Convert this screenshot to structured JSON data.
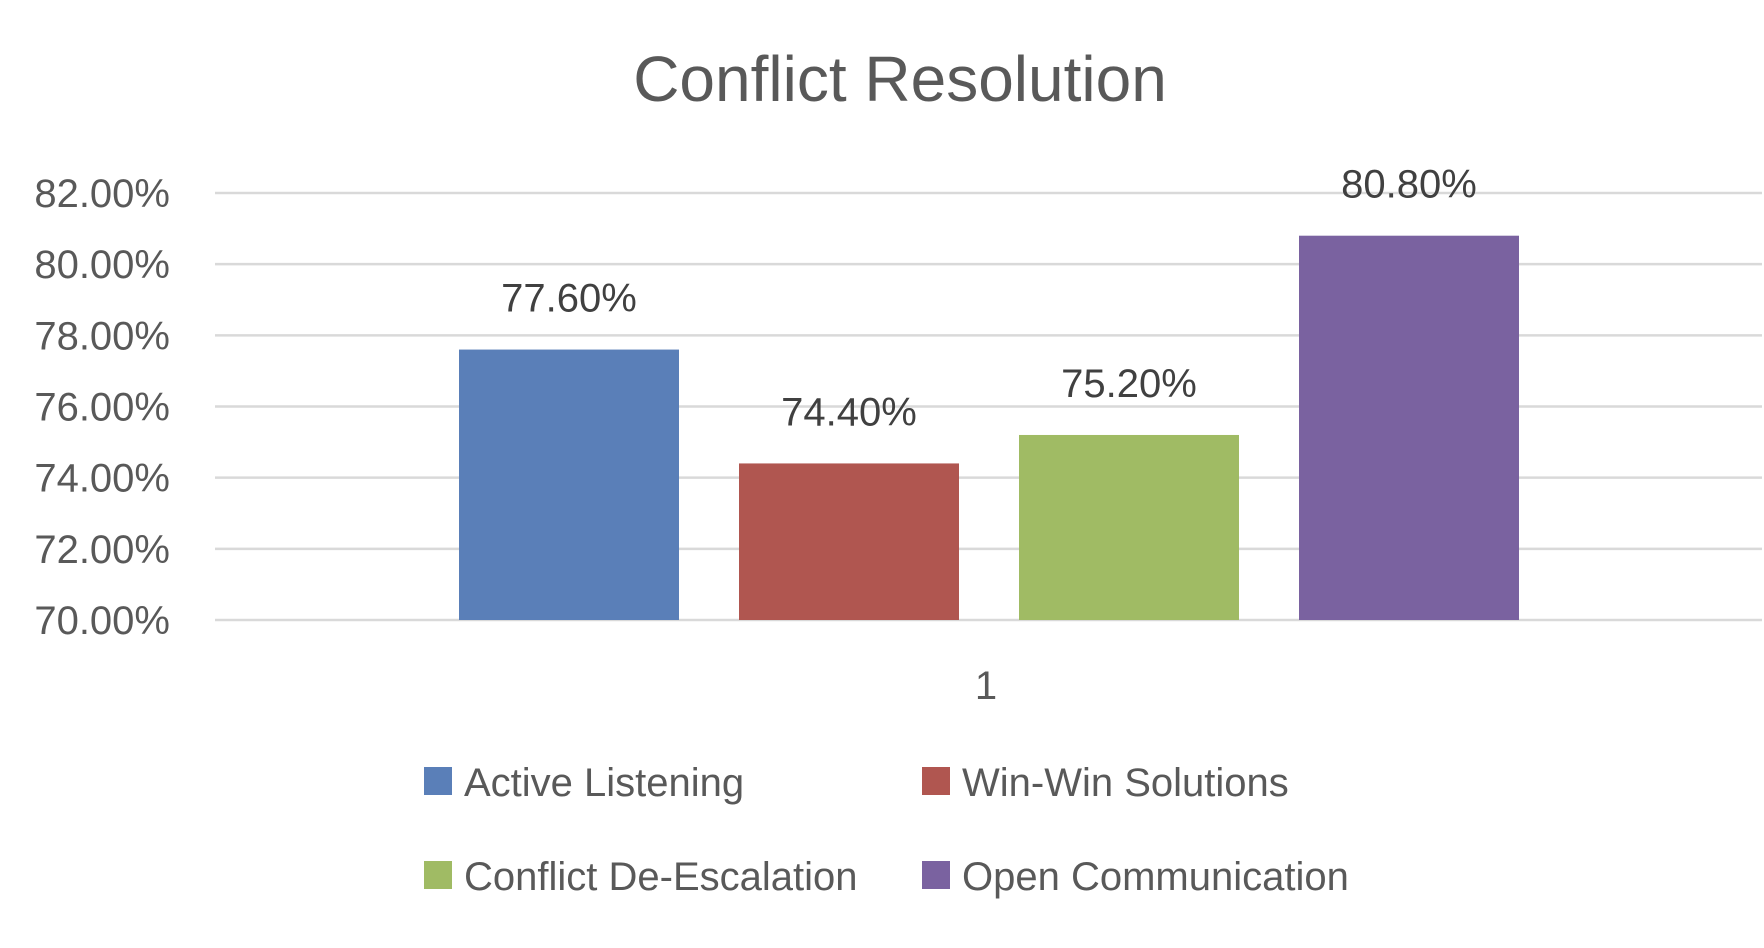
{
  "chart_data": {
    "type": "bar",
    "title": "Conflict Resolution",
    "categories": [
      "1"
    ],
    "series": [
      {
        "name": "Active Listening",
        "values": [
          77.6
        ],
        "label": "77.60%",
        "color": "#5a7fb8"
      },
      {
        "name": "Win-Win Solutions",
        "values": [
          74.4
        ],
        "label": "74.40%",
        "color": "#b05650"
      },
      {
        "name": "Conflict De-Escalation",
        "values": [
          75.2
        ],
        "label": "75.20%",
        "color": "#a0bb64"
      },
      {
        "name": "Open Communication",
        "values": [
          80.8
        ],
        "label": "80.80%",
        "color": "#7a62a0"
      }
    ],
    "ylim": [
      70,
      82
    ],
    "yticks": [
      70,
      72,
      74,
      76,
      78,
      80,
      82
    ],
    "ytick_labels": [
      "70.00%",
      "72.00%",
      "74.00%",
      "76.00%",
      "78.00%",
      "80.00%",
      "82.00%"
    ],
    "grid": true,
    "legend_position": "bottom"
  }
}
